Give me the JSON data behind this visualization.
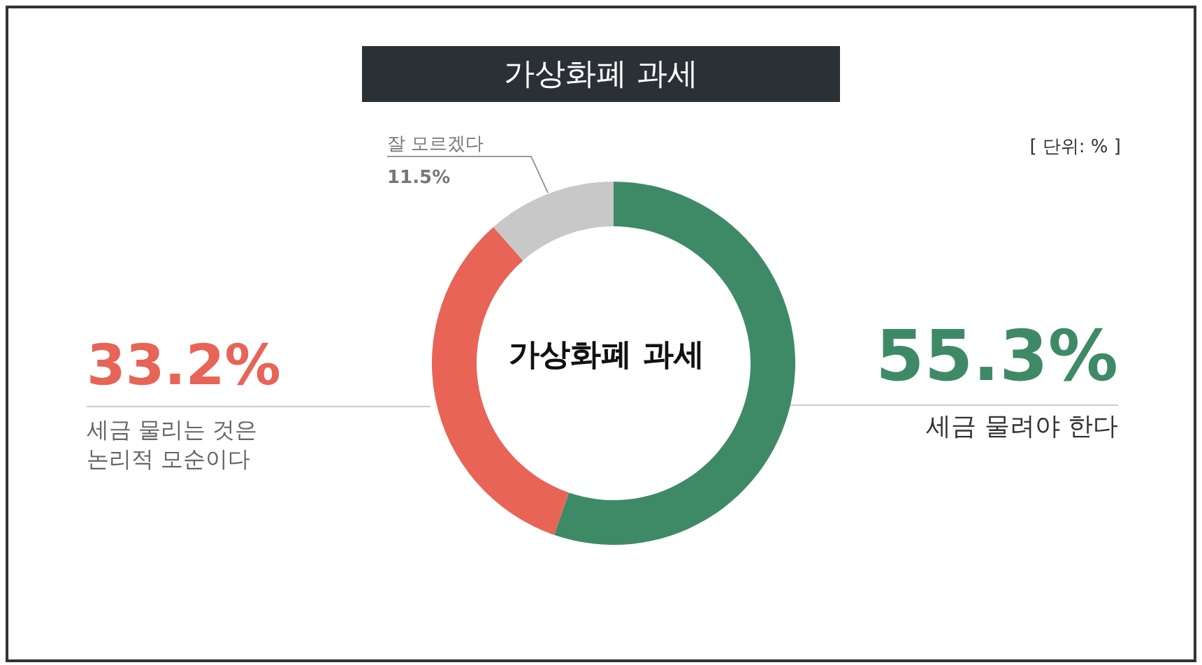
{
  "chart_data": {
    "type": "donut",
    "title": "가상화폐 과세",
    "categories": [
      "세금 물려야 한다",
      "세금 물리는 것은 논리적 모순이다",
      "잘 모르겠다"
    ],
    "values": [
      55.3,
      33.2,
      11.5
    ],
    "colors": [
      "#3f8a66",
      "#e86456",
      "#c8c8c8"
    ],
    "value_labels": [
      "55.3%",
      "33.2%",
      "11.5%"
    ],
    "annotations": [
      "가상화폐 과세",
      "[ 단위: % ]"
    ],
    "legend": false
  }
}
